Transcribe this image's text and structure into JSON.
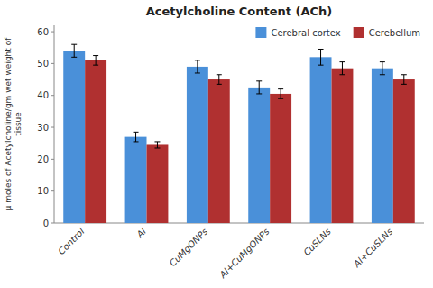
{
  "chart_data": {
    "type": "bar",
    "title": "Acetylcholine Content (ACh)",
    "ylabel": "μ moles of Acetylcholine/gm wet weight of\ntissue",
    "categories": [
      "Control",
      "Al",
      "CuMgONPs",
      "Al+CuMgONPs",
      "CuSLNs",
      "Al+CuSLNs"
    ],
    "series": [
      {
        "name": "Cerebral cortex",
        "color": "#4A90D9",
        "values": [
          54,
          27,
          49,
          42.5,
          52,
          48.5
        ],
        "errors": [
          2.0,
          1.5,
          2.0,
          2.0,
          2.5,
          2.0
        ]
      },
      {
        "name": "Cerebellum",
        "color": "#B03030",
        "values": [
          51,
          24.5,
          45,
          40.5,
          48.5,
          45
        ],
        "errors": [
          1.5,
          1.0,
          1.5,
          1.5,
          2.0,
          1.5
        ]
      }
    ],
    "ylim": [
      0,
      62
    ],
    "yticks": [
      0,
      10,
      20,
      30,
      40,
      50,
      60
    ],
    "legend": "upper right",
    "grid": false
  }
}
